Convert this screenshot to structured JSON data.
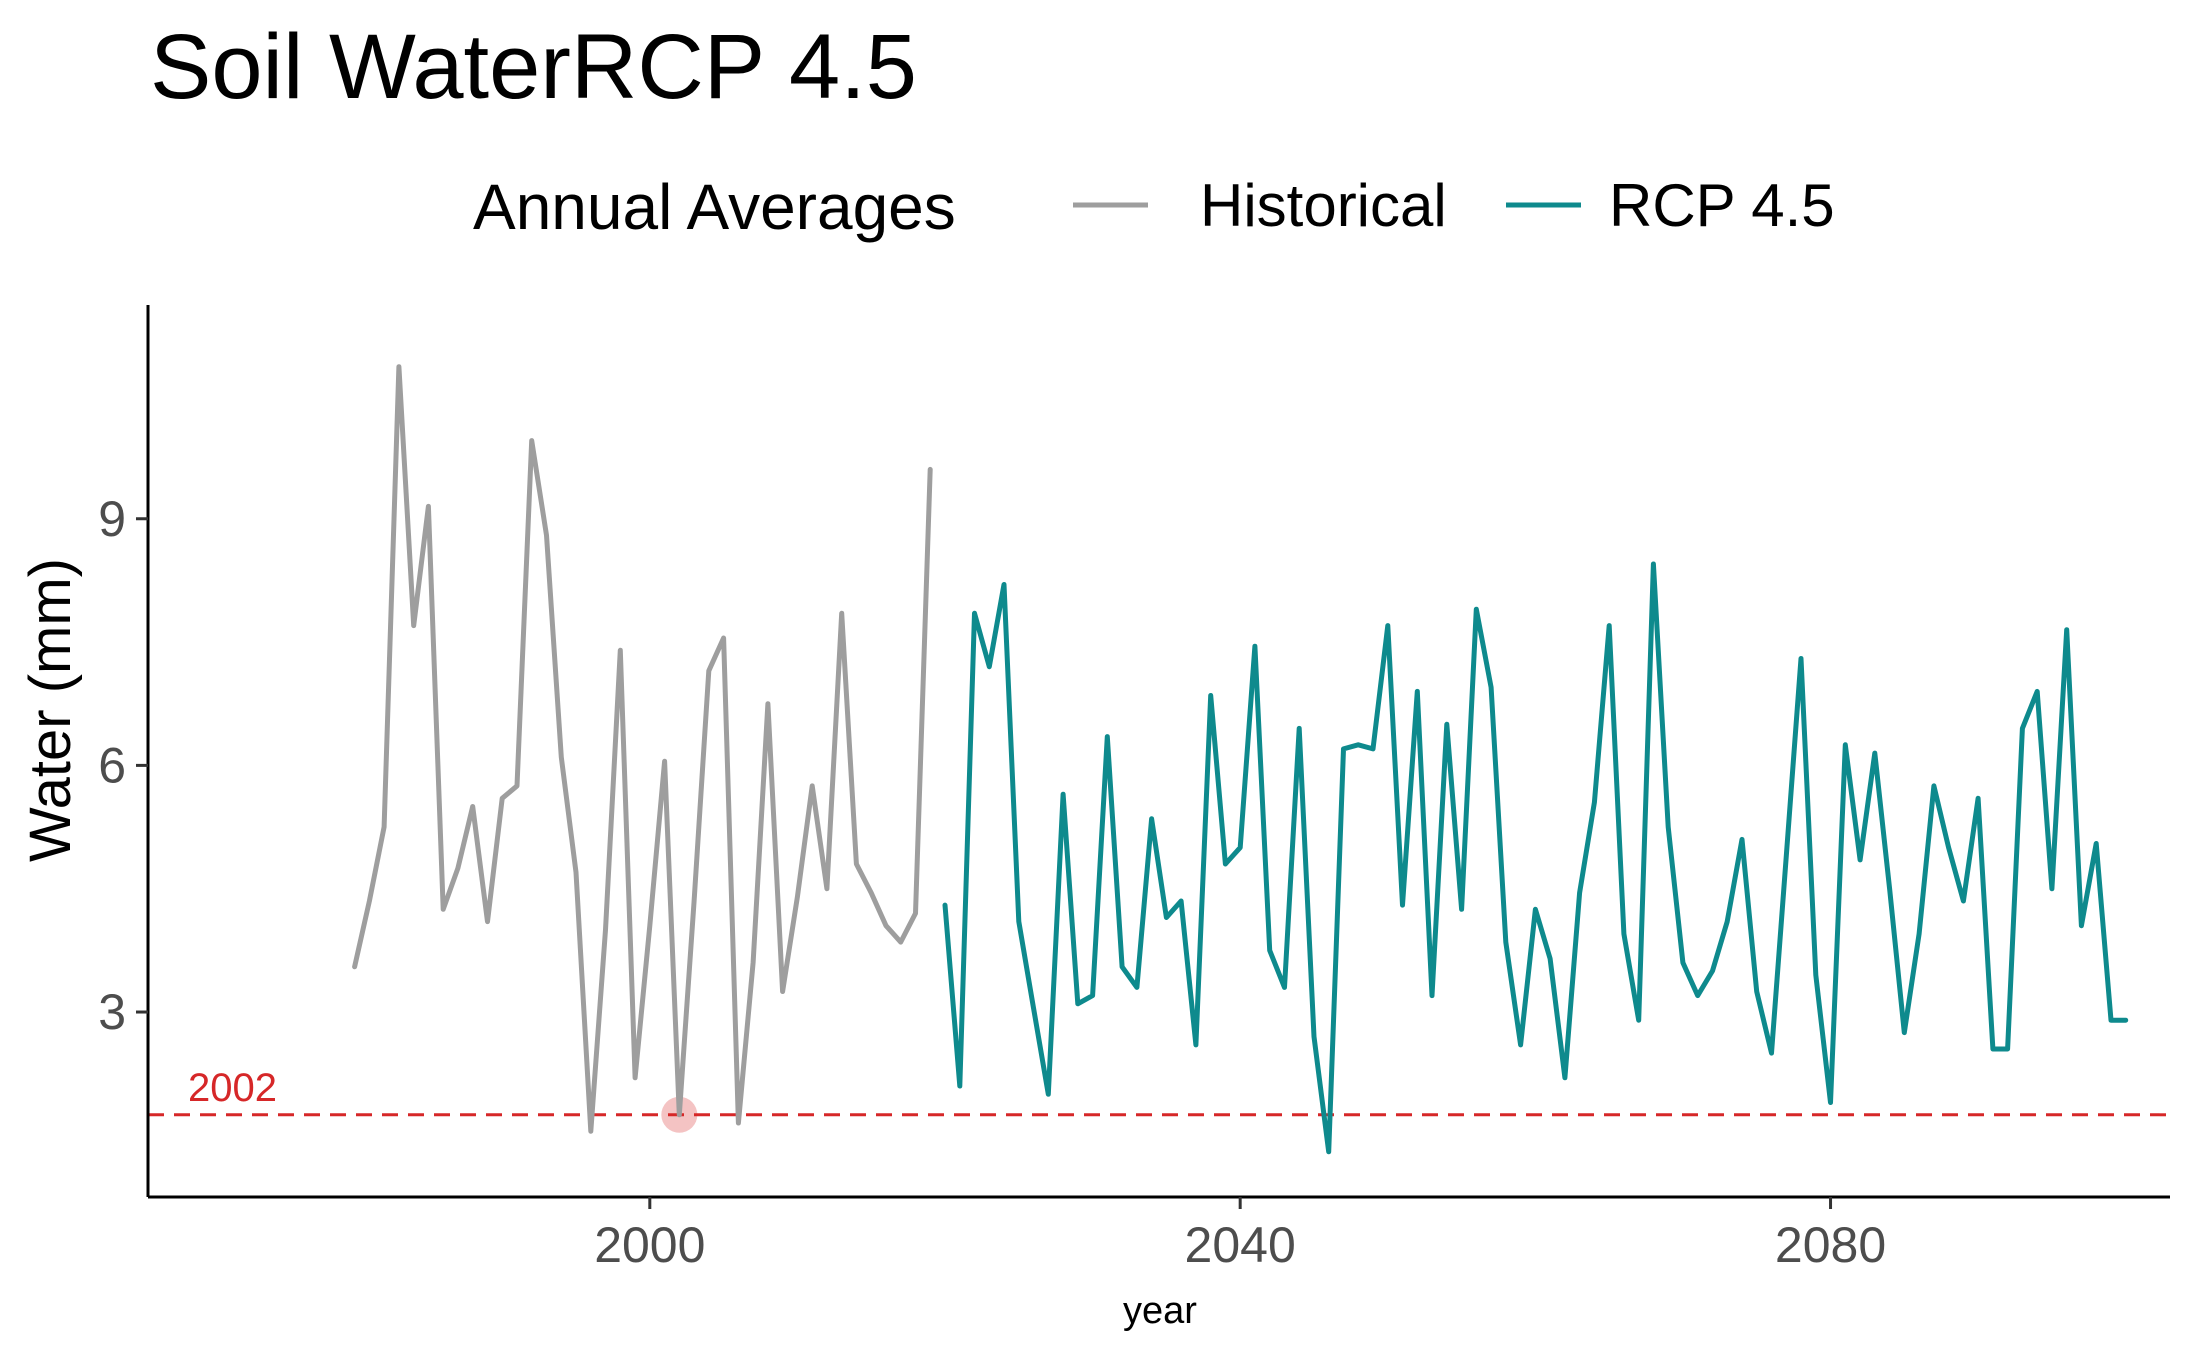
{
  "chart_data": {
    "type": "line",
    "title": "Soil WaterRCP 4.5",
    "xlabel": "year",
    "ylabel": "Water (mm)",
    "xlim": [
      1966,
      2103
    ],
    "ylim": [
      0.75,
      11.6
    ],
    "x_ticks": [
      2000,
      2040,
      2080
    ],
    "y_ticks": [
      3,
      6,
      9
    ],
    "legend": {
      "title": "Annual Averages",
      "position": "top",
      "entries": [
        "Historical",
        "RCP 4.5"
      ]
    },
    "grid": false,
    "series": [
      {
        "name": "Historical",
        "color": "#9e9e9e",
        "x": [
          1980,
          1981,
          1982,
          1983,
          1984,
          1985,
          1986,
          1987,
          1988,
          1989,
          1990,
          1991,
          1992,
          1993,
          1994,
          1995,
          1996,
          1997,
          1998,
          1999,
          2000,
          2001,
          2002,
          2003,
          2004,
          2005,
          2006,
          2007,
          2008,
          2009,
          2010,
          2011,
          2012,
          2013,
          2014,
          2015,
          2016,
          2017,
          2018,
          2019
        ],
        "y": [
          3.55,
          4.35,
          5.25,
          10.85,
          7.7,
          9.15,
          4.25,
          4.75,
          5.5,
          4.1,
          5.6,
          5.75,
          9.95,
          8.8,
          6.1,
          4.7,
          1.55,
          4.0,
          7.4,
          2.2,
          4.05,
          6.05,
          1.75,
          4.35,
          7.15,
          7.55,
          1.65,
          3.6,
          6.75,
          3.25,
          4.4,
          5.75,
          4.5,
          7.85,
          4.8,
          4.45,
          4.05,
          3.85,
          4.2,
          9.6
        ]
      },
      {
        "name": "RCP 4.5",
        "color": "#0e8a8d",
        "x": [
          2020,
          2021,
          2022,
          2023,
          2024,
          2025,
          2026,
          2027,
          2028,
          2029,
          2030,
          2031,
          2032,
          2033,
          2034,
          2035,
          2036,
          2037,
          2038,
          2039,
          2040,
          2041,
          2042,
          2043,
          2044,
          2045,
          2046,
          2047,
          2048,
          2049,
          2050,
          2051,
          2052,
          2053,
          2054,
          2055,
          2056,
          2057,
          2058,
          2059,
          2060,
          2061,
          2062,
          2063,
          2064,
          2065,
          2066,
          2067,
          2068,
          2069,
          2070,
          2071,
          2072,
          2073,
          2074,
          2075,
          2076,
          2077,
          2078,
          2079,
          2080,
          2081,
          2082,
          2083,
          2084,
          2085,
          2086,
          2087,
          2088,
          2089,
          2090,
          2091,
          2092,
          2093,
          2094,
          2095,
          2096,
          2097,
          2098,
          2099,
          2100
        ],
        "y": [
          4.3,
          2.1,
          7.85,
          7.2,
          8.2,
          4.1,
          3.05,
          2.0,
          5.65,
          3.1,
          3.2,
          6.35,
          3.55,
          3.3,
          5.35,
          4.15,
          4.35,
          2.6,
          6.85,
          4.8,
          5.0,
          7.45,
          3.75,
          3.3,
          6.45,
          2.7,
          1.3,
          6.2,
          6.25,
          6.2,
          7.7,
          4.3,
          6.9,
          3.2,
          6.5,
          4.25,
          7.9,
          6.95,
          3.85,
          2.6,
          4.25,
          3.65,
          2.2,
          4.45,
          5.55,
          7.7,
          3.95,
          2.9,
          8.45,
          5.25,
          3.6,
          3.2,
          3.5,
          4.1,
          5.1,
          3.25,
          2.5,
          4.9,
          7.3,
          3.45,
          1.9,
          6.25,
          4.85,
          6.15,
          4.5,
          2.75,
          3.95,
          5.75,
          5.0,
          4.35,
          5.6,
          2.55,
          2.55,
          6.45,
          6.9,
          4.5,
          7.65,
          4.05,
          5.05,
          2.9,
          2.9
        ]
      }
    ],
    "reference_line": {
      "y": 1.75,
      "label": "2002",
      "color": "#d62728",
      "style": "dashed"
    },
    "highlight_point": {
      "x": 2002,
      "y": 1.75,
      "color": "#d62728"
    }
  }
}
